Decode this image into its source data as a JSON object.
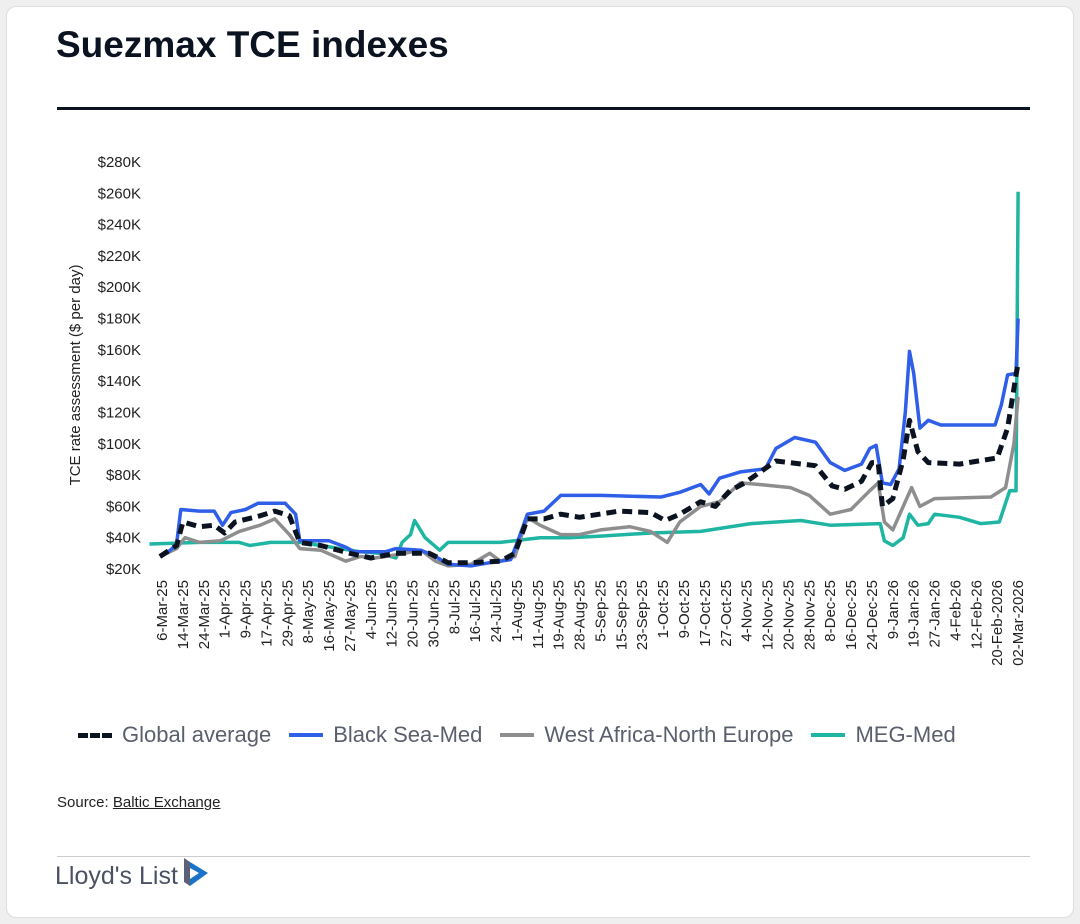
{
  "title": "Suezmax TCE indexes",
  "source_label": "Source:",
  "source_link": "Baltic Exchange",
  "logo_text": "Lloyd's List",
  "chart_data": {
    "type": "line",
    "title": "Suezmax TCE indexes",
    "ylabel": "TCE rate assessment ($ per day)",
    "xlabel": "",
    "ylim": [
      20,
      280
    ],
    "yticks": [
      20,
      40,
      60,
      80,
      100,
      120,
      140,
      160,
      180,
      200,
      220,
      240,
      260,
      280
    ],
    "ytick_labels": [
      "$20K",
      "$40K",
      "$60K",
      "$80K",
      "$100K",
      "$120K",
      "$140K",
      "$160K",
      "$180K",
      "$200K",
      "$220K",
      "$240K",
      "$260K",
      "$280K"
    ],
    "x_unit": "tick index (0 = 6-Mar-25, 41 = 02-Mar-2026)",
    "xtick_labels": [
      "6-Mar-25",
      "14-Mar-25",
      "24-Mar-25",
      "1-Apr-25",
      "9-Apr-25",
      "17-Apr-25",
      "29-Apr-25",
      "8-May-25",
      "16-May-25",
      "27-May-25",
      "4-Jun-25",
      "12-Jun-25",
      "20-Jun-25",
      "30-Jun-25",
      "8-Jul-25",
      "16-Jul-25",
      "24-Jul-25",
      "1-Aug-25",
      "11-Aug-25",
      "19-Aug-25",
      "28-Aug-25",
      "5-Sep-25",
      "15-Sep-25",
      "23-Sep-25",
      "1-Oct-25",
      "9-Oct-25",
      "17-Oct-25",
      "27-Oct-25",
      "4-Nov-25",
      "12-Nov-25",
      "20-Nov-25",
      "28-Nov-25",
      "8-Dec-25",
      "16-Dec-25",
      "24-Dec-25",
      "9-Jan-26",
      "19-Jan-26",
      "27-Jan-26",
      "4-Feb-26",
      "12-Feb-26",
      "20-Feb-2026",
      "02-Mar-2026"
    ],
    "grid": false,
    "legend_position": "bottom",
    "series": [
      {
        "name": "Global average",
        "color": "#0b1320",
        "dashed": true,
        "points": [
          [
            -0.1,
            28
          ],
          [
            0.7,
            35
          ],
          [
            1,
            50
          ],
          [
            1.8,
            47
          ],
          [
            2.5,
            48
          ],
          [
            3,
            43
          ],
          [
            3.5,
            50
          ],
          [
            4.7,
            54
          ],
          [
            5.4,
            57
          ],
          [
            6.1,
            54
          ],
          [
            6.6,
            37
          ],
          [
            7.6,
            35
          ],
          [
            9,
            30
          ],
          [
            10,
            27
          ],
          [
            11.2,
            30
          ],
          [
            12.8,
            30
          ],
          [
            13.7,
            24
          ],
          [
            14.8,
            24
          ],
          [
            16.2,
            25
          ],
          [
            16.9,
            30
          ],
          [
            17.5,
            52
          ],
          [
            18.3,
            52
          ],
          [
            19.1,
            55
          ],
          [
            20,
            53
          ],
          [
            21.9,
            57
          ],
          [
            23.4,
            56
          ],
          [
            24.1,
            51
          ],
          [
            24.8,
            55
          ],
          [
            25.8,
            63
          ],
          [
            26.5,
            60
          ],
          [
            27.2,
            70
          ],
          [
            27.9,
            75
          ],
          [
            29.4,
            89
          ],
          [
            31.3,
            86
          ],
          [
            32.1,
            73
          ],
          [
            32.7,
            71
          ],
          [
            33.5,
            76
          ],
          [
            34,
            88
          ],
          [
            34.3,
            88
          ],
          [
            34.5,
            60
          ],
          [
            35,
            65
          ],
          [
            35.5,
            90
          ],
          [
            35.8,
            115
          ],
          [
            36.2,
            95
          ],
          [
            36.7,
            88
          ],
          [
            38.2,
            87
          ],
          [
            40,
            91
          ],
          [
            40.5,
            110
          ],
          [
            41,
            152
          ]
        ]
      },
      {
        "name": "Black Sea-Med",
        "color": "#2f5ee8",
        "dashed": false,
        "points": [
          [
            -0.1,
            28
          ],
          [
            0.4,
            32
          ],
          [
            0.7,
            36
          ],
          [
            0.9,
            58
          ],
          [
            1.8,
            57
          ],
          [
            2.5,
            57
          ],
          [
            2.9,
            48
          ],
          [
            3.3,
            56
          ],
          [
            4,
            58
          ],
          [
            4.6,
            62
          ],
          [
            5.9,
            62
          ],
          [
            6.4,
            55
          ],
          [
            6.6,
            38
          ],
          [
            8,
            38
          ],
          [
            8.8,
            34
          ],
          [
            9.2,
            31
          ],
          [
            10.7,
            31
          ],
          [
            11.2,
            33
          ],
          [
            12.4,
            32
          ],
          [
            13.1,
            28
          ],
          [
            13.7,
            23
          ],
          [
            14.8,
            22
          ],
          [
            15.7,
            24
          ],
          [
            16.7,
            26
          ],
          [
            17.1,
            40
          ],
          [
            17.5,
            55
          ],
          [
            18.3,
            57
          ],
          [
            19.1,
            67
          ],
          [
            21,
            67
          ],
          [
            23.9,
            66
          ],
          [
            24.8,
            69
          ],
          [
            25.8,
            74
          ],
          [
            26.2,
            68
          ],
          [
            26.7,
            78
          ],
          [
            27.7,
            82
          ],
          [
            28.9,
            84
          ],
          [
            29.4,
            97
          ],
          [
            30.3,
            104
          ],
          [
            31.3,
            101
          ],
          [
            32,
            88
          ],
          [
            32.7,
            83
          ],
          [
            33.5,
            87
          ],
          [
            33.9,
            97
          ],
          [
            34.2,
            99
          ],
          [
            34.5,
            75
          ],
          [
            34.9,
            74
          ],
          [
            35.3,
            84
          ],
          [
            35.6,
            120
          ],
          [
            35.8,
            159
          ],
          [
            36,
            145
          ],
          [
            36.3,
            110
          ],
          [
            36.7,
            115
          ],
          [
            37.3,
            112
          ],
          [
            39.9,
            112
          ],
          [
            40.2,
            125
          ],
          [
            40.5,
            144
          ],
          [
            40.9,
            145
          ],
          [
            41,
            180
          ]
        ]
      },
      {
        "name": "West Africa-North Europe",
        "color": "#8e8e8e",
        "dashed": false,
        "points": [
          [
            -0.1,
            28
          ],
          [
            0.7,
            33
          ],
          [
            1.1,
            40
          ],
          [
            1.8,
            37
          ],
          [
            2.8,
            38
          ],
          [
            3.7,
            44
          ],
          [
            4.7,
            48
          ],
          [
            5.4,
            52
          ],
          [
            6.1,
            42
          ],
          [
            6.6,
            33
          ],
          [
            7.6,
            32
          ],
          [
            8.8,
            25
          ],
          [
            9.5,
            28
          ],
          [
            10.2,
            27
          ],
          [
            11.2,
            29
          ],
          [
            12.4,
            32
          ],
          [
            13.1,
            25
          ],
          [
            13.7,
            22
          ],
          [
            14.8,
            23
          ],
          [
            15.7,
            30
          ],
          [
            16.2,
            25
          ],
          [
            16.9,
            28
          ],
          [
            17.5,
            53
          ],
          [
            18.1,
            48
          ],
          [
            19.1,
            42
          ],
          [
            20,
            42
          ],
          [
            21,
            45
          ],
          [
            22.4,
            47
          ],
          [
            23.4,
            44
          ],
          [
            24.2,
            37
          ],
          [
            24.8,
            50
          ],
          [
            25.8,
            60
          ],
          [
            26.7,
            63
          ],
          [
            27.7,
            75
          ],
          [
            28.6,
            74
          ],
          [
            30.1,
            72
          ],
          [
            31,
            67
          ],
          [
            32,
            55
          ],
          [
            33,
            58
          ],
          [
            33.9,
            70
          ],
          [
            34.3,
            75
          ],
          [
            34.6,
            50
          ],
          [
            35,
            45
          ],
          [
            35.6,
            63
          ],
          [
            35.9,
            72
          ],
          [
            36.3,
            60
          ],
          [
            37,
            65
          ],
          [
            39.7,
            66
          ],
          [
            40.4,
            72
          ],
          [
            40.8,
            100
          ],
          [
            41,
            130
          ]
        ]
      },
      {
        "name": "MEG-Med",
        "color": "#1fb5a3",
        "dashed": false,
        "points": [
          [
            -0.6,
            36
          ],
          [
            1.8,
            37
          ],
          [
            3.7,
            37
          ],
          [
            4.2,
            35
          ],
          [
            5.2,
            37
          ],
          [
            6.6,
            37
          ],
          [
            7.6,
            35
          ],
          [
            9.5,
            31
          ],
          [
            10.4,
            30
          ],
          [
            11.2,
            27
          ],
          [
            11.5,
            37
          ],
          [
            11.9,
            42
          ],
          [
            12.1,
            51
          ],
          [
            12.6,
            40
          ],
          [
            13.3,
            32
          ],
          [
            13.7,
            37
          ],
          [
            14.8,
            37
          ],
          [
            16.2,
            37
          ],
          [
            18.1,
            40
          ],
          [
            19.5,
            40
          ],
          [
            21,
            41
          ],
          [
            23.4,
            43
          ],
          [
            25.8,
            44
          ],
          [
            28.2,
            49
          ],
          [
            30.6,
            51
          ],
          [
            32,
            48
          ],
          [
            34.4,
            49
          ],
          [
            34.6,
            38
          ],
          [
            35,
            35
          ],
          [
            35.5,
            40
          ],
          [
            35.8,
            55
          ],
          [
            36.2,
            48
          ],
          [
            36.7,
            49
          ],
          [
            37,
            55
          ],
          [
            38.2,
            53
          ],
          [
            39.2,
            49
          ],
          [
            40.1,
            50
          ],
          [
            40.6,
            70
          ],
          [
            40.9,
            70
          ],
          [
            41,
            261
          ]
        ]
      }
    ]
  }
}
